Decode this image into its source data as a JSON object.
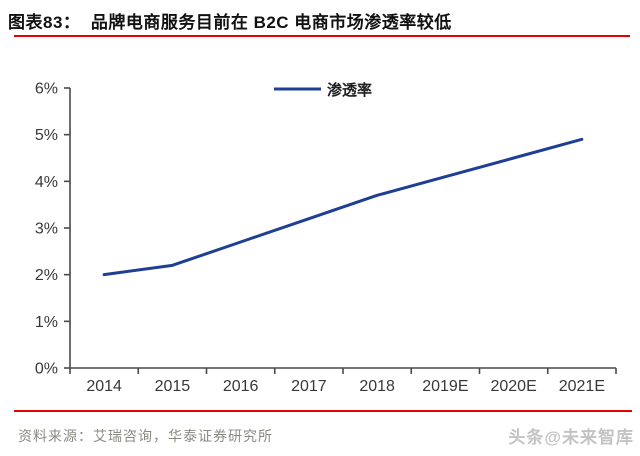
{
  "header": {
    "title": "图表83：  品牌电商服务目前在 B2C 电商市场渗透率较低"
  },
  "chart_data": {
    "type": "line",
    "title": "",
    "xlabel": "",
    "ylabel": "",
    "categories": [
      "2014",
      "2015",
      "2016",
      "2017",
      "2018",
      "2019E",
      "2020E",
      "2021E"
    ],
    "series": [
      {
        "name": "渗透率",
        "values": [
          2.0,
          2.2,
          2.7,
          3.2,
          3.7,
          4.1,
          4.5,
          4.9
        ],
        "color": "#1f3f94"
      }
    ],
    "unit": "%",
    "ylim": [
      0,
      6
    ],
    "ytick_step": 1,
    "ytick_labels": [
      "0%",
      "1%",
      "2%",
      "3%",
      "4%",
      "5%",
      "6%"
    ],
    "grid": false,
    "legend_position": "top-center"
  },
  "footer": {
    "source": "资料来源：艾瑞咨询，华泰证券研究所",
    "watermark": "头条@未来智库"
  },
  "colors": {
    "accent_red": "#e60000",
    "line_navy": "#1f3f94",
    "axis": "#4a4a4a",
    "source_text": "#8b8b83",
    "watermark": "#c3c3c3"
  }
}
